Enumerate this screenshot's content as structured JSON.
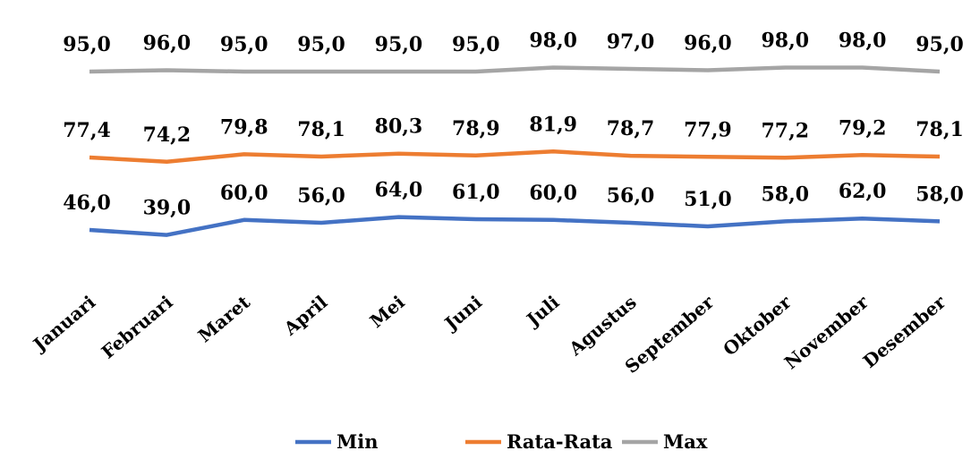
{
  "chart_data": {
    "type": "line",
    "categories": [
      "Januari",
      "Februari",
      "Maret",
      "April",
      "Mei",
      "Juni",
      "Juli",
      "Agustus",
      "September",
      "Oktober",
      "November",
      "Desember"
    ],
    "series": [
      {
        "name": "Min",
        "color": "#4472C4",
        "values": [
          46.0,
          39.0,
          60.0,
          56.0,
          64.0,
          61.0,
          60.0,
          56.0,
          51.0,
          58.0,
          62.0,
          58.0
        ],
        "labels": [
          "46,0",
          "39,0",
          "60,0",
          "56,0",
          "64,0",
          "61,0",
          "60,0",
          "56,0",
          "51,0",
          "58,0",
          "62,0",
          "58,0"
        ]
      },
      {
        "name": "Rata-Rata",
        "color": "#ED7D31",
        "values": [
          77.4,
          74.2,
          79.8,
          78.1,
          80.3,
          78.9,
          81.9,
          78.7,
          77.9,
          77.2,
          79.2,
          78.1
        ],
        "labels": [
          "77,4",
          "74,2",
          "79,8",
          "78,1",
          "80,3",
          "78,9",
          "81,9",
          "78,7",
          "77,9",
          "77,2",
          "79,2",
          "78,1"
        ]
      },
      {
        "name": "Max",
        "color": "#A5A5A5",
        "values": [
          95.0,
          96.0,
          95.0,
          95.0,
          95.0,
          95.0,
          98.0,
          97.0,
          96.0,
          98.0,
          98.0,
          95.0
        ],
        "labels": [
          "95,0",
          "96,0",
          "95,0",
          "95,0",
          "95,0",
          "95,0",
          "98,0",
          "97,0",
          "96,0",
          "98,0",
          "98,0",
          "95,0"
        ]
      }
    ],
    "title": "",
    "xlabel": "",
    "ylabel": "",
    "grid": false,
    "legend": "bottom"
  }
}
